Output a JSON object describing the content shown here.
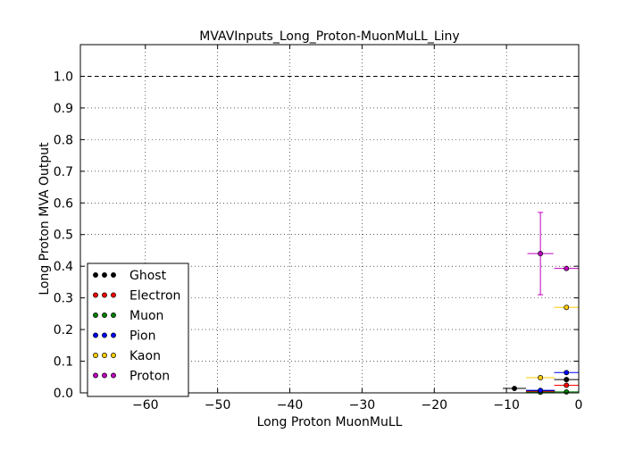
{
  "chart_data": {
    "type": "scatter",
    "title": "MVAVInputs_Long_Proton-MuonMuLL_Liny",
    "xlabel": "Long Proton MuonMuLL",
    "ylabel": "Long Proton MVA Output",
    "xlim": [
      -69,
      0
    ],
    "ylim": [
      0,
      1.1
    ],
    "x_ticks": [
      -60,
      -50,
      -40,
      -30,
      -20,
      -10,
      0
    ],
    "x_tick_labels": [
      "−60",
      "−50",
      "−40",
      "−30",
      "−20",
      "−10",
      "0"
    ],
    "y_ticks": [
      0.0,
      0.1,
      0.2,
      0.3,
      0.4,
      0.5,
      0.6,
      0.7,
      0.8,
      0.9,
      1.0
    ],
    "y_tick_labels": [
      "0.0",
      "0.1",
      "0.2",
      "0.3",
      "0.4",
      "0.5",
      "0.6",
      "0.7",
      "0.8",
      "0.9",
      "1.0"
    ],
    "grid": true,
    "reference_line_y": 1.0,
    "legend_position": "lower-left",
    "series": [
      {
        "name": "Ghost",
        "color": "#000000",
        "points": [
          {
            "x": -8.9,
            "y": 0.014,
            "xerr": 1.6,
            "yerr": 0.003
          },
          {
            "x": -5.3,
            "y": 0.006,
            "xerr": 2.0,
            "yerr": 0.002
          },
          {
            "x": -1.7,
            "y": 0.042,
            "xerr": 1.7,
            "yerr": 0.004
          }
        ]
      },
      {
        "name": "Electron",
        "color": "#ff0000",
        "points": [
          {
            "x": -5.3,
            "y": 0.004,
            "xerr": 2.0,
            "yerr": 0.002
          },
          {
            "x": -1.7,
            "y": 0.024,
            "xerr": 1.7,
            "yerr": 0.003
          }
        ]
      },
      {
        "name": "Muon",
        "color": "#008000",
        "points": [
          {
            "x": -67.5,
            "y": 0.0,
            "xerr": 0.0,
            "yerr": 0.0
          },
          {
            "x": -5.3,
            "y": 0.002,
            "xerr": 2.0,
            "yerr": 0.001
          },
          {
            "x": -1.7,
            "y": 0.003,
            "xerr": 1.7,
            "yerr": 0.001
          }
        ]
      },
      {
        "name": "Pion",
        "color": "#0000ff",
        "points": [
          {
            "x": -5.3,
            "y": 0.008,
            "xerr": 2.0,
            "yerr": 0.002
          },
          {
            "x": -1.7,
            "y": 0.064,
            "xerr": 1.7,
            "yerr": 0.004
          }
        ]
      },
      {
        "name": "Kaon",
        "color": "#ffcc00",
        "points": [
          {
            "x": -5.3,
            "y": 0.048,
            "xerr": 2.0,
            "yerr": 0.005
          },
          {
            "x": -1.7,
            "y": 0.27,
            "xerr": 1.7,
            "yerr": 0.006
          }
        ]
      },
      {
        "name": "Proton",
        "color": "#bf00bf",
        "points": [
          {
            "x": -5.3,
            "y": 0.44,
            "xerr": 1.8,
            "yerr": 0.13
          },
          {
            "x": -1.7,
            "y": 0.393,
            "xerr": 1.7,
            "yerr": 0.006
          }
        ]
      }
    ]
  }
}
